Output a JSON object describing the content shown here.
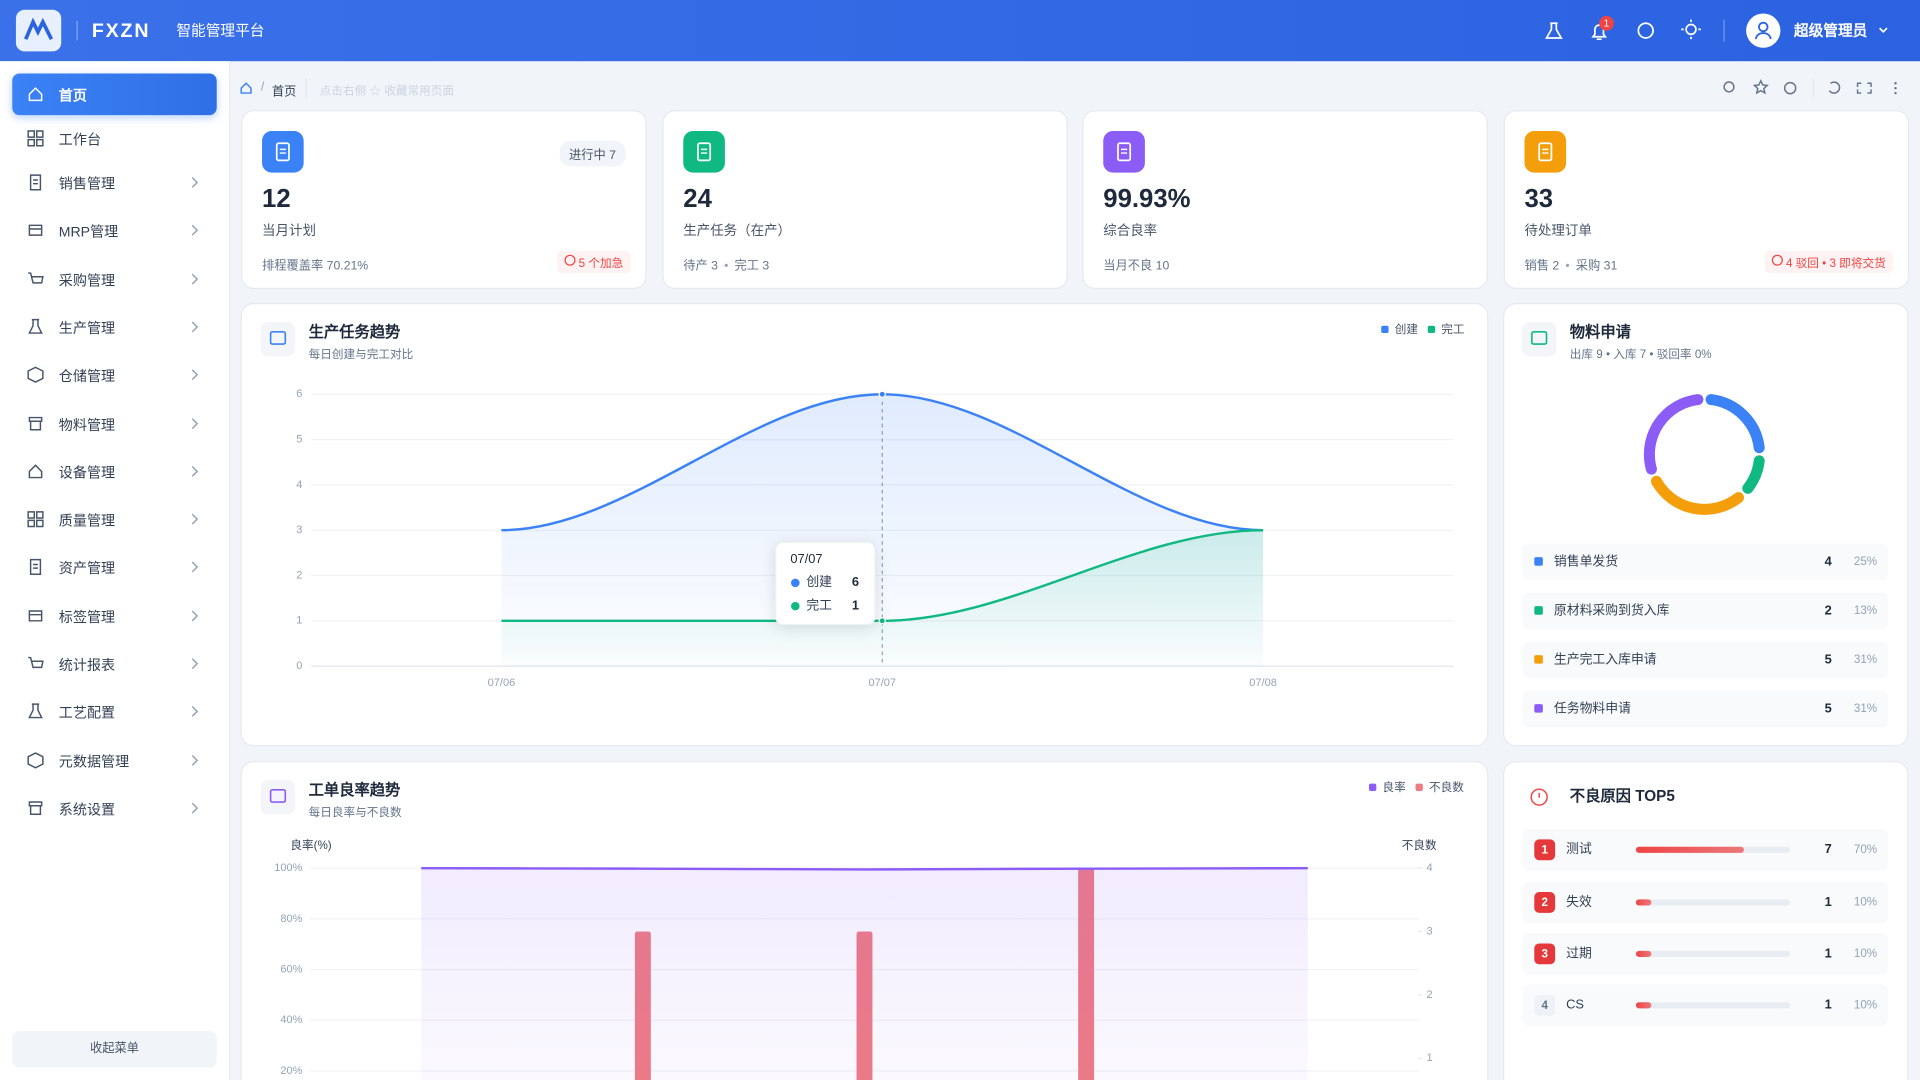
{
  "header": {
    "brand": "FXZN",
    "subtitle": "智能管理平台",
    "notifications": 1,
    "user": "超级管理员"
  },
  "sidebar": {
    "menu": [
      "首页",
      "工作台",
      "销售管理",
      "MRP管理",
      "采购管理",
      "生产管理",
      "仓储管理",
      "物料管理",
      "设备管理",
      "质量管理",
      "资产管理",
      "标签管理",
      "统计报表",
      "工艺配置",
      "元数据管理",
      "系统设置"
    ],
    "collapse": "收起菜单"
  },
  "breadcrumb": {
    "home": "首页",
    "hint": "点击右侧 ☆ 收藏常用页面"
  },
  "cards": [
    {
      "value": "12",
      "label": "当月计划",
      "badge": "进行中 7",
      "footer": [
        "排程覆盖率 70.21%"
      ],
      "alert": "5 个加急",
      "color": "#3b82f6"
    },
    {
      "value": "24",
      "label": "生产任务（在产）",
      "footer": [
        "待产 3",
        "完工 3"
      ],
      "color": "#10b981"
    },
    {
      "value": "99.93%",
      "label": "综合良率",
      "footer": [
        "当月不良 10"
      ],
      "color": "#8b5cf6"
    },
    {
      "value": "33",
      "label": "待处理订单",
      "footer": [
        "销售 2",
        "采购 31"
      ],
      "alert": "4 驳回 • 3 即将交货",
      "color": "#f59e0b"
    }
  ],
  "trend_chart": {
    "type": "line",
    "title": "生产任务趋势",
    "subtitle": "每日创建与完工对比",
    "x": [
      "07/06",
      "07/07",
      "07/08"
    ],
    "series": [
      {
        "name": "创建",
        "color": "#3b82f6",
        "values": [
          3,
          6,
          3
        ]
      },
      {
        "name": "完工",
        "color": "#10b981",
        "values": [
          1,
          1,
          3
        ]
      }
    ],
    "ylim": [
      0,
      6
    ],
    "yticks": [
      0,
      1,
      2,
      3,
      4,
      5,
      6
    ],
    "grid": true,
    "legend": "top-right",
    "tooltip_index": 1
  },
  "material_chart": {
    "type": "pie",
    "title": "物料申请",
    "subtitle": "出库 9 • 入库 7 • 驳回率 0%",
    "categories": [
      "销售单发货",
      "原材料采购到货入库",
      "生产完工入库申请",
      "任务物料申请"
    ],
    "values": [
      4,
      2,
      5,
      5
    ],
    "value_labels": [
      "25%",
      "13%",
      "31%",
      "31%"
    ],
    "colors": [
      "#3b82f6",
      "#10b981",
      "#f59e0b",
      "#8b5cf6"
    ]
  },
  "yield_chart": {
    "type": "bar-line",
    "title": "工单良率趋势",
    "subtitle": "每日良率与不良数",
    "ylabel": "良率(%)",
    "y2label": "不良数",
    "categories": [
      null,
      null,
      null,
      null,
      null
    ],
    "series": [
      {
        "name": "良率",
        "color": "#8b5cf6",
        "type": "line",
        "values": [
          100,
          99.8,
          99.5,
          99.8,
          100
        ]
      },
      {
        "name": "不良数",
        "color": "#ef7b84",
        "type": "bar",
        "axis": "y2",
        "values": [
          0,
          3,
          3,
          4,
          0
        ]
      }
    ],
    "ylim": [
      0,
      100
    ],
    "yticks": [
      {
        "value": 20,
        "label": "20%"
      },
      {
        "value": 40,
        "label": "40%"
      },
      {
        "value": 60,
        "label": "60%"
      },
      {
        "value": 80,
        "label": "80%"
      },
      {
        "value": 100,
        "label": "100%"
      }
    ],
    "y2lim": [
      0,
      4
    ],
    "y2ticks": [
      1,
      2,
      3,
      4
    ],
    "grid": true,
    "legend": "top-right"
  },
  "defect_chart": {
    "type": "bar",
    "title": "不良原因 TOP5",
    "ranks": [
      1,
      2,
      3,
      4
    ],
    "categories": [
      "测试",
      "失效",
      "过期",
      "CS"
    ],
    "values": [
      7,
      1,
      1,
      1
    ],
    "value_labels": [
      "70%",
      "10%",
      "10%",
      "10%"
    ],
    "xlim": [
      0,
      10
    ],
    "color": "#ef4444"
  }
}
